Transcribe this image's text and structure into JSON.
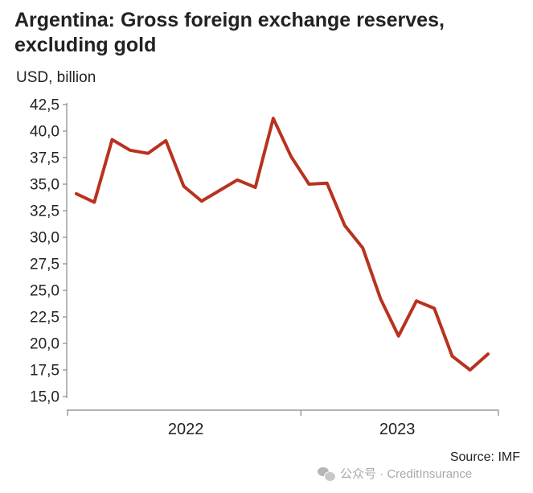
{
  "title": "Argentina: Gross foreign exchange reserves, excluding gold",
  "unit_label": "USD, billion",
  "source": "Source: IMF",
  "watermark": {
    "icon": "wechat-icon",
    "text": "公众号 · CreditInsurance"
  },
  "chart_data": {
    "type": "line",
    "title": "Argentina: Gross foreign exchange reserves, excluding gold",
    "ylabel": "USD, billion",
    "xlabel": "",
    "ylim": [
      15.0,
      42.5
    ],
    "yticks": [
      "15,0",
      "17,5",
      "20,0",
      "22,5",
      "25,0",
      "27,5",
      "30,0",
      "32,5",
      "35,0",
      "37,5",
      "40,0",
      "42,5"
    ],
    "ytick_values": [
      15.0,
      17.5,
      20.0,
      22.5,
      25.0,
      27.5,
      30.0,
      32.5,
      35.0,
      37.5,
      40.0,
      42.5
    ],
    "xtick_labels": [
      "2022",
      "2023"
    ],
    "x": [
      "2021-12",
      "2022-01",
      "2022-02",
      "2022-03",
      "2022-04",
      "2022-05",
      "2022-06",
      "2022-07",
      "2022-08",
      "2022-09",
      "2022-10",
      "2022-11",
      "2022-12",
      "2023-01",
      "2023-02",
      "2023-03",
      "2023-04",
      "2023-05",
      "2023-06",
      "2023-07",
      "2023-08",
      "2023-09",
      "2023-10",
      "2023-11"
    ],
    "series": [
      {
        "name": "",
        "color": "#b83220",
        "values": [
          34.1,
          33.3,
          39.2,
          38.2,
          37.9,
          39.1,
          34.8,
          33.4,
          34.4,
          35.4,
          34.7,
          41.2,
          37.6,
          35.0,
          35.1,
          31.1,
          29.0,
          24.2,
          20.7,
          24.0,
          23.3,
          18.8,
          17.5,
          19.0
        ]
      }
    ],
    "grid": false,
    "legend": "none",
    "axis_color": "#888888"
  }
}
